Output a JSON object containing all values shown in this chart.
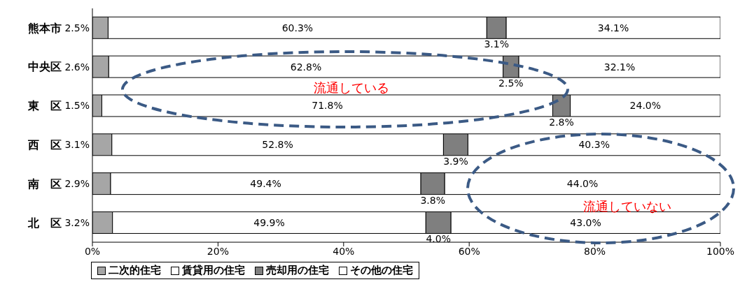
{
  "chart_data": {
    "type": "bar",
    "orientation": "horizontal",
    "stacked": true,
    "categories": [
      "熊本市",
      "中央区",
      "東　区",
      "西　区",
      "南　区",
      "北　区"
    ],
    "series": [
      {
        "name": "二次的住宅",
        "color": "#a6a6a6",
        "values": [
          2.5,
          2.6,
          1.5,
          3.1,
          2.9,
          3.2
        ],
        "value_labels": [
          "2.5%",
          "2.6%",
          "1.5%",
          "3.1%",
          "2.9%",
          "3.2%"
        ]
      },
      {
        "name": "賃貸用の住宅",
        "color": "#ffffff",
        "values": [
          60.3,
          62.8,
          71.8,
          52.8,
          49.4,
          49.9
        ],
        "value_labels": [
          "60.3%",
          "62.8%",
          "71.8%",
          "52.8%",
          "49.4%",
          "49.9%"
        ]
      },
      {
        "name": "売却用の住宅",
        "color": "#7f7f7f",
        "values": [
          3.1,
          2.5,
          2.8,
          3.9,
          3.8,
          4.0
        ],
        "value_labels": [
          "3.1%",
          "2.5%",
          "2.8%",
          "3.9%",
          "3.8%",
          "4.0%"
        ]
      },
      {
        "name": "その他の住宅",
        "color": "#ffffff",
        "values": [
          34.1,
          32.1,
          24.0,
          40.3,
          44.0,
          43.0
        ],
        "value_labels": [
          "34.1%",
          "32.1%",
          "24.0%",
          "40.3%",
          "44.0%",
          "43.0%"
        ]
      }
    ],
    "xlim": [
      0,
      100
    ],
    "xticks": [
      {
        "value": 0,
        "label": "0%"
      },
      {
        "value": 20,
        "label": "20%"
      },
      {
        "value": 40,
        "label": "40%"
      },
      {
        "value": 60,
        "label": "60%"
      },
      {
        "value": 80,
        "label": "80%"
      },
      {
        "value": 100,
        "label": "100%"
      }
    ],
    "annotations": [
      "流通している",
      "流通していない"
    ],
    "legend": "bottom",
    "grid": false
  }
}
